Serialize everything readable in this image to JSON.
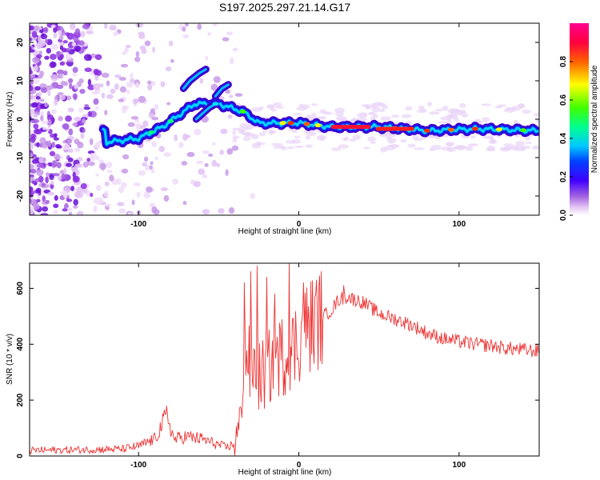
{
  "chart_data": [
    {
      "type": "heatmap",
      "title": "S197.2025.297.21.14.G17",
      "xlabel": "Height of straight line (km)",
      "ylabel": "Frequency (Hz)",
      "xlim": [
        -168,
        150
      ],
      "ylim": [
        -25,
        25
      ],
      "xticks": [
        -100,
        0,
        100
      ],
      "yticks": [
        -20,
        -10,
        0,
        10,
        20
      ],
      "colorbar": {
        "label": "Normalized spectral amplitude",
        "range": [
          0.0,
          1.0
        ],
        "ticks": [
          "0.0",
          "0.2",
          "0.4",
          "0.6",
          "0.8"
        ],
        "tick_values": [
          0.0,
          0.2,
          0.4,
          0.6,
          0.8
        ],
        "colors": [
          "#ffffff",
          "#e0b8f0",
          "#8a2be2",
          "#3c00ff",
          "#0000ff",
          "#00c8ff",
          "#00ff60",
          "#ffff00",
          "#ff3000",
          "#ff0070"
        ]
      },
      "ridge": [
        {
          "x": -120,
          "y": -6
        },
        {
          "x": -100,
          "y": -5
        },
        {
          "x": -85,
          "y": -2
        },
        {
          "x": -75,
          "y": 1
        },
        {
          "x": -65,
          "y": 4
        },
        {
          "x": -50,
          "y": 4
        },
        {
          "x": -35,
          "y": 2
        },
        {
          "x": -25,
          "y": -1
        },
        {
          "x": -10,
          "y": -1
        },
        {
          "x": 0,
          "y": -1
        },
        {
          "x": 20,
          "y": -2
        },
        {
          "x": 50,
          "y": -2
        },
        {
          "x": 80,
          "y": -3
        },
        {
          "x": 110,
          "y": -2.5
        },
        {
          "x": 150,
          "y": -3
        }
      ],
      "branches": [
        {
          "x": [
            -72,
            -68,
            -62,
            -58
          ],
          "y": [
            8,
            10,
            12,
            13
          ]
        },
        {
          "x": [
            -52,
            -48,
            -44
          ],
          "y": [
            6,
            8,
            9
          ]
        },
        {
          "x": [
            -64,
            -60,
            -56,
            -52
          ],
          "y": [
            0,
            1.5,
            3,
            4
          ]
        }
      ]
    },
    {
      "type": "line",
      "xlabel": "Height of straight line (km)",
      "ylabel": "SNR (10 * v/v)",
      "xlim": [
        -168,
        150
      ],
      "ylim": [
        0,
        690
      ],
      "xticks": [
        -100,
        0,
        100
      ],
      "yticks": [
        0,
        200,
        400,
        600
      ],
      "series": [
        {
          "name": "SNR",
          "color": "#ee3333",
          "x": [
            -168,
            -140,
            -110,
            -100,
            -90,
            -82,
            -80,
            -78,
            -70,
            -60,
            -50,
            -45,
            -40,
            -37,
            -35,
            -33,
            -30,
            -28,
            -25,
            -20,
            -15,
            -10,
            -5,
            0,
            5,
            10,
            15,
            20,
            25,
            30,
            40,
            50,
            60,
            70,
            80,
            90,
            100,
            110,
            120,
            130,
            140,
            150
          ],
          "y": [
            20,
            22,
            25,
            35,
            60,
            150,
            100,
            60,
            70,
            60,
            40,
            30,
            45,
            100,
            280,
            380,
            300,
            320,
            280,
            300,
            350,
            360,
            370,
            420,
            460,
            480,
            500,
            520,
            560,
            570,
            550,
            510,
            490,
            470,
            440,
            420,
            410,
            400,
            395,
            385,
            380,
            375
          ]
        }
      ],
      "spikes": [
        {
          "x": -34,
          "y": 620
        },
        {
          "x": -30,
          "y": 660
        },
        {
          "x": -26,
          "y": 680
        },
        {
          "x": -20,
          "y": 640
        },
        {
          "x": -15,
          "y": 580
        },
        {
          "x": -6,
          "y": 690
        },
        {
          "x": 3,
          "y": 620
        },
        {
          "x": 28,
          "y": 610
        }
      ]
    }
  ]
}
